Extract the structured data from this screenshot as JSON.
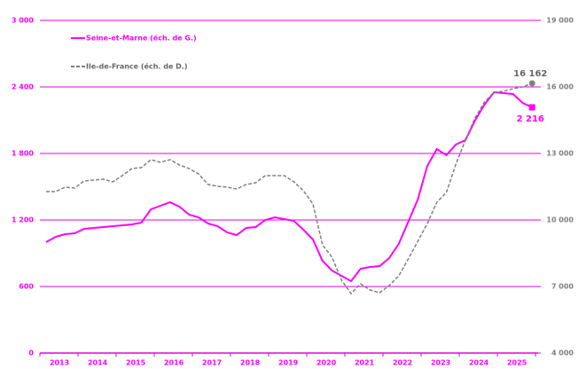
{
  "chart_data": {
    "type": "line",
    "categories": [
      null,
      "2013",
      null,
      null,
      null,
      "2014",
      null,
      null,
      null,
      "2015",
      null,
      null,
      null,
      "2016",
      null,
      null,
      null,
      "2017",
      null,
      null,
      null,
      "2018",
      null,
      null,
      null,
      "2019",
      null,
      null,
      null,
      "2020",
      null,
      null,
      null,
      "2021",
      null,
      null,
      null,
      "2022",
      null,
      null,
      null,
      "2023",
      null,
      null,
      null,
      "2024",
      null,
      null,
      null,
      "2025",
      null,
      null
    ],
    "series": [
      {
        "name": "Seine-et-Marne (éch. de G.)",
        "color": "#ff00ff",
        "axis": "y",
        "values": [
          1000,
          1048,
          1072,
          1080,
          1120,
          1128,
          1136,
          1144,
          1152,
          1160,
          1176,
          1296,
          1328,
          1360,
          1320,
          1248,
          1224,
          1168,
          1144,
          1088,
          1064,
          1128,
          1136,
          1200,
          1224,
          1208,
          1192,
          1112,
          1024,
          832,
          744,
          696,
          648,
          760,
          776,
          784,
          856,
          984,
          1184,
          1384,
          1688,
          1840,
          1784,
          1880,
          1920,
          2096,
          2240,
          2352,
          2344,
          2336,
          2256,
          2216
        ],
        "value_labels": [
          null,
          null,
          null,
          null,
          null,
          null,
          null,
          null,
          null,
          null,
          null,
          null,
          null,
          null,
          null,
          null,
          null,
          null,
          null,
          null,
          null,
          null,
          null,
          null,
          null,
          null,
          null,
          null,
          null,
          null,
          null,
          null,
          null,
          null,
          null,
          null,
          null,
          null,
          null,
          null,
          null,
          null,
          null,
          null,
          null,
          null,
          null,
          null,
          null,
          null,
          null,
          "2 216"
        ]
      },
      {
        "name": "Ile-de-France (éch. de D.)",
        "color": "#808080",
        "axis": "y2",
        "values": [
          11280,
          11280,
          11480,
          11440,
          11760,
          11800,
          11840,
          11720,
          12000,
          12320,
          12360,
          12720,
          12600,
          12720,
          12480,
          12320,
          12080,
          11600,
          11520,
          11480,
          11400,
          11600,
          11680,
          12000,
          12000,
          12000,
          11720,
          11320,
          10720,
          8880,
          8320,
          7280,
          6680,
          7120,
          6840,
          6720,
          7040,
          7480,
          8240,
          9040,
          9840,
          10800,
          11240,
          12520,
          13600,
          14600,
          15320,
          15760,
          15800,
          15920,
          16000,
          16162
        ],
        "value_labels": [
          null,
          null,
          null,
          null,
          null,
          null,
          null,
          null,
          null,
          null,
          null,
          null,
          null,
          null,
          null,
          null,
          null,
          null,
          null,
          null,
          null,
          null,
          null,
          null,
          null,
          null,
          null,
          null,
          null,
          null,
          null,
          null,
          null,
          null,
          null,
          null,
          null,
          null,
          null,
          null,
          null,
          null,
          null,
          null,
          null,
          null,
          null,
          null,
          null,
          null,
          null,
          "16 162"
        ]
      }
    ],
    "ylim": [
      0,
      3000
    ],
    "yticks": [
      0,
      600,
      {
        "value": 1200,
        "label": "1 200"
      },
      {
        "value": 1800,
        "label": "1 800"
      },
      {
        "value": 2400,
        "label": "2 400"
      },
      {
        "value": 3000,
        "label": "3 000"
      }
    ],
    "y2lim": [
      4000,
      19000
    ],
    "y2ticks": [
      {
        "value": 4000,
        "label": "4 000"
      },
      {
        "value": 7000,
        "label": "7 000"
      },
      {
        "value": 10000,
        "label": "10 000"
      },
      {
        "value": 13000,
        "label": "13 000"
      },
      {
        "value": 16000,
        "label": "16 000"
      },
      {
        "value": 19000,
        "label": "19 000"
      }
    ],
    "grid": true,
    "grid_color": "#e600e6",
    "legend": "upper left"
  }
}
